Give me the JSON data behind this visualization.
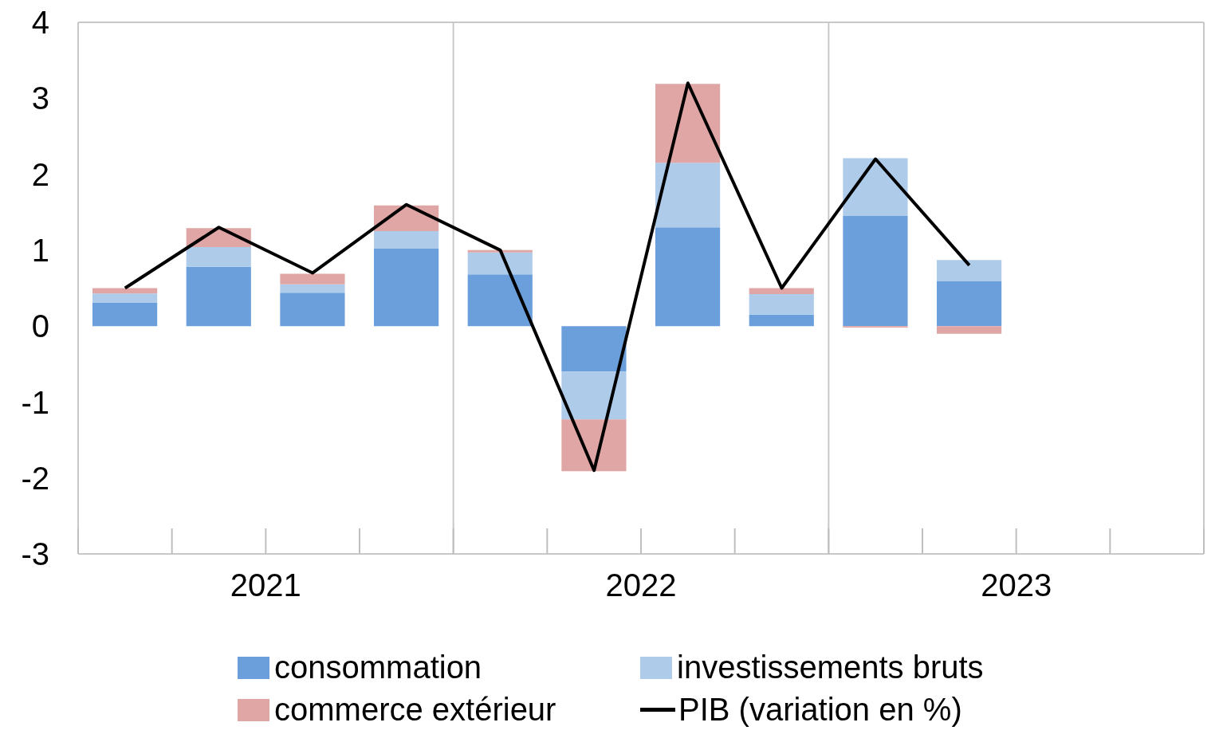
{
  "chart_data": {
    "type": "bar",
    "stacked": true,
    "categories": [
      null,
      null,
      null,
      null,
      null,
      null,
      null,
      null,
      null,
      null,
      null,
      null
    ],
    "annotations": [
      "2021",
      "2022",
      "2023"
    ],
    "series": [
      {
        "name": "consommation",
        "color": "#6a9fdb",
        "values": [
          0.31,
          0.78,
          0.44,
          1.02,
          0.68,
          -0.6,
          1.3,
          0.15,
          1.45,
          0.59,
          null,
          null
        ]
      },
      {
        "name": "investissements bruts",
        "color": "#aecbea",
        "values": [
          0.12,
          0.26,
          0.11,
          0.23,
          0.29,
          -0.63,
          0.85,
          0.27,
          0.76,
          0.28,
          null,
          null
        ]
      },
      {
        "name": "commerce extérieur",
        "color": "#e0a5a5",
        "values": [
          0.07,
          0.25,
          0.14,
          0.34,
          0.03,
          -0.68,
          1.04,
          0.08,
          -0.02,
          -0.1,
          null,
          null
        ]
      },
      {
        "name": "PIB (variation en %)",
        "type": "line",
        "color": "#000000",
        "values": [
          0.5,
          1.3,
          0.7,
          1.6,
          1.0,
          -1.9,
          3.2,
          0.5,
          2.2,
          0.8,
          null,
          null
        ]
      }
    ],
    "ylim": [
      -3,
      4
    ],
    "yticks": [
      -3,
      -2,
      -1,
      0,
      1,
      2,
      3,
      4
    ],
    "grid": true,
    "legend": "bottom",
    "marker": "none",
    "line_style": "solid"
  }
}
